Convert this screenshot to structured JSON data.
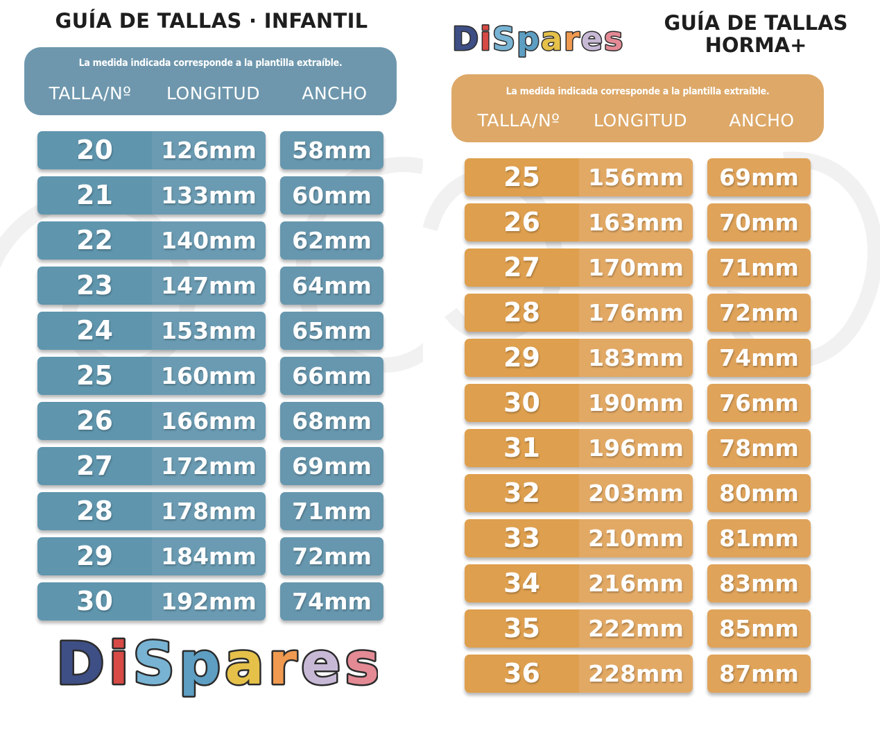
{
  "left": {
    "title": "GUÍA DE TALLAS · INFANTIL",
    "note": "La medida indicada corresponde a la plantilla extraíble.",
    "headers": [
      "TALLA/Nº",
      "LONGITUD",
      "ANCHO"
    ],
    "logo_text": "DiSpares",
    "rows": [
      {
        "size": "20",
        "length": "126mm",
        "width": "58mm"
      },
      {
        "size": "21",
        "length": "133mm",
        "width": "60mm"
      },
      {
        "size": "22",
        "length": "140mm",
        "width": "62mm"
      },
      {
        "size": "23",
        "length": "147mm",
        "width": "64mm"
      },
      {
        "size": "24",
        "length": "153mm",
        "width": "65mm"
      },
      {
        "size": "25",
        "length": "160mm",
        "width": "66mm"
      },
      {
        "size": "26",
        "length": "166mm",
        "width": "68mm"
      },
      {
        "size": "27",
        "length": "172mm",
        "width": "69mm"
      },
      {
        "size": "28",
        "length": "178mm",
        "width": "71mm"
      },
      {
        "size": "29",
        "length": "184mm",
        "width": "72mm"
      },
      {
        "size": "30",
        "length": "192mm",
        "width": "74mm"
      }
    ]
  },
  "right": {
    "title_line1": "GUÍA DE TALLAS",
    "title_line2": "HORMA+",
    "note": "La medida indicada corresponde a la plantilla extraíble.",
    "headers": [
      "TALLA/Nº",
      "LONGITUD",
      "ANCHO"
    ],
    "logo_text": "DiSpares",
    "rows": [
      {
        "size": "25",
        "length": "156mm",
        "width": "69mm"
      },
      {
        "size": "26",
        "length": "163mm",
        "width": "70mm"
      },
      {
        "size": "27",
        "length": "170mm",
        "width": "71mm"
      },
      {
        "size": "28",
        "length": "176mm",
        "width": "72mm"
      },
      {
        "size": "29",
        "length": "183mm",
        "width": "74mm"
      },
      {
        "size": "30",
        "length": "190mm",
        "width": "76mm"
      },
      {
        "size": "31",
        "length": "196mm",
        "width": "78mm"
      },
      {
        "size": "32",
        "length": "203mm",
        "width": "80mm"
      },
      {
        "size": "33",
        "length": "210mm",
        "width": "81mm"
      },
      {
        "size": "34",
        "length": "216mm",
        "width": "83mm"
      },
      {
        "size": "35",
        "length": "222mm",
        "width": "85mm"
      },
      {
        "size": "36",
        "length": "228mm",
        "width": "87mm"
      }
    ]
  },
  "colors": {
    "blue_header": "#6e97ad",
    "blue_size": "#5f95ad",
    "blue_length": "#6a9bb2",
    "blue_width": "#6797ae",
    "orange_header": "#dda868",
    "orange_size": "#de9f4e",
    "orange_length": "#e2a965",
    "orange_width": "#dfa35a",
    "title_text": "#1e1e1e",
    "logo_letters": [
      "#3e4f85",
      "#d74a45",
      "#78b3d3",
      "#5d9ec2",
      "#e5c14a",
      "#ef9a50",
      "#c7b9d6",
      "#e38a95"
    ]
  }
}
